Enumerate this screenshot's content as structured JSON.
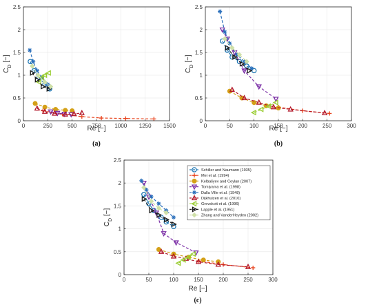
{
  "chart_data": [
    {
      "type": "line",
      "panel_label": "(a)",
      "xlabel": "Re [−]",
      "ylabel": "C_D [−]",
      "xlim": [
        0,
        1500
      ],
      "ylim": [
        0,
        2.5
      ],
      "xticks": [
        0,
        250,
        500,
        750,
        1000,
        1250,
        1500
      ],
      "yticks": [
        0,
        0.5,
        1,
        1.5,
        2,
        2.5
      ],
      "grid": true,
      "series": [
        {
          "name": "Schiller and Naumann (1935)",
          "color": "#1f77b4",
          "marker": "circle",
          "x": [
            70,
            110,
            160,
            220,
            270
          ],
          "y": [
            1.3,
            1.1,
            0.95,
            0.8,
            0.7
          ]
        },
        {
          "name": "Mei et al. (1994)",
          "color": "#e8431c",
          "marker": "plus",
          "x": [
            200,
            400,
            600,
            800,
            1050,
            1340
          ],
          "y": [
            0.22,
            0.15,
            0.09,
            0.06,
            0.05,
            0.04
          ]
        },
        {
          "name": "Kelbaliyev and Ceylan (2007)",
          "color": "#d4a017",
          "marker": "circle-filled",
          "x": [
            120,
            220,
            330,
            430,
            500
          ],
          "y": [
            0.38,
            0.3,
            0.25,
            0.23,
            0.22
          ]
        },
        {
          "name": "Tomiyama et al. (1998)",
          "color": "#7b2fa6",
          "marker": "triangle-down",
          "x": [
            280,
            350,
            420,
            490
          ],
          "y": [
            0.2,
            0.17,
            0.15,
            0.14
          ]
        },
        {
          "name": "Dalla Ville et al. (1948)",
          "color": "#2a6fbb",
          "marker": "star",
          "x": [
            65,
            100,
            140,
            190,
            250
          ],
          "y": [
            1.55,
            1.3,
            1.1,
            0.95,
            0.8
          ]
        },
        {
          "name": "Dijkhuizen et al. (2010)",
          "color": "#b2182b",
          "marker": "triangle-up",
          "x": [
            140,
            220,
            320,
            430,
            520,
            600
          ],
          "y": [
            0.27,
            0.2,
            0.16,
            0.14,
            0.15,
            0.17
          ]
        },
        {
          "name": "Grevskott et al. (1996)",
          "color": "#9acd32",
          "marker": "triangle-left",
          "x": [
            160,
            190,
            220,
            260
          ],
          "y": [
            0.85,
            0.95,
            1.0,
            1.05
          ]
        },
        {
          "name": "Lapple et al. (1951)",
          "color": "#1a1a1a",
          "marker": "triangle-right",
          "x": [
            90,
            140,
            200,
            260
          ],
          "y": [
            1.05,
            0.9,
            0.75,
            0.7
          ]
        },
        {
          "name": "Zhang and VanderHeyden (2002)",
          "color": "#cfe0a8",
          "marker": "diamond",
          "x": [
            90,
            150,
            220,
            280
          ],
          "y": [
            1.2,
            1.0,
            0.85,
            0.75
          ]
        }
      ]
    },
    {
      "type": "line",
      "panel_label": "(b)",
      "xlabel": "Re [−]",
      "ylabel": "C_D [−]",
      "xlim": [
        0,
        300
      ],
      "ylim": [
        0,
        2.5
      ],
      "xticks": [
        0,
        50,
        100,
        150,
        200,
        250,
        300
      ],
      "yticks": [
        0,
        0.5,
        1,
        1.5,
        2,
        2.5
      ],
      "grid": true,
      "series": [
        {
          "name": "Schiller and Naumann (1935)",
          "color": "#1f77b4",
          "marker": "circle",
          "x": [
            35,
            45,
            55,
            70,
            85,
            100
          ],
          "y": [
            1.75,
            1.55,
            1.4,
            1.3,
            1.2,
            1.1
          ]
        },
        {
          "name": "Mei et al. (1994)",
          "color": "#e8431c",
          "marker": "plus",
          "x": [
            150,
            200,
            255
          ],
          "y": [
            0.3,
            0.22,
            0.16
          ]
        },
        {
          "name": "Kelbaliyev and Ceylan (2007)",
          "color": "#d4a017",
          "marker": "circle-filled",
          "x": [
            50,
            75,
            100,
            125,
            150
          ],
          "y": [
            0.65,
            0.5,
            0.4,
            0.33,
            0.28
          ]
        },
        {
          "name": "Tomiyama et al. (1998)",
          "color": "#7b2fa6",
          "marker": "triangle-down",
          "x": [
            35,
            45,
            60,
            80,
            110,
            145
          ],
          "y": [
            2.0,
            1.8,
            1.5,
            1.1,
            0.75,
            0.48
          ]
        },
        {
          "name": "Dalla Ville et al. (1948)",
          "color": "#2a6fbb",
          "marker": "star",
          "x": [
            30,
            40,
            50,
            65,
            80,
            95
          ],
          "y": [
            2.4,
            1.95,
            1.7,
            1.45,
            1.3,
            1.15
          ]
        },
        {
          "name": "Dijkhuizen et al. (2010)",
          "color": "#b2182b",
          "marker": "triangle-up",
          "x": [
            55,
            80,
            110,
            140,
            175,
            245
          ],
          "y": [
            0.68,
            0.5,
            0.4,
            0.3,
            0.25,
            0.17
          ]
        },
        {
          "name": "Grevskott et al. (1996)",
          "color": "#9acd32",
          "marker": "triangle-left",
          "x": [
            100,
            115,
            130,
            145
          ],
          "y": [
            0.18,
            0.25,
            0.32,
            0.4
          ]
        },
        {
          "name": "Lapple et al. (1951)",
          "color": "#1a1a1a",
          "marker": "triangle-right",
          "x": [
            45,
            60,
            75,
            90
          ],
          "y": [
            1.6,
            1.4,
            1.25,
            1.1
          ]
        },
        {
          "name": "Zhang and VanderHeyden (2002)",
          "color": "#cfe0a8",
          "marker": "diamond",
          "x": [
            40,
            55,
            70,
            85
          ],
          "y": [
            1.8,
            1.6,
            1.45,
            1.3
          ]
        }
      ]
    },
    {
      "type": "line",
      "panel_label": "(c)",
      "xlabel": "Re [−]",
      "ylabel": "C_D [−]",
      "xlim": [
        0,
        300
      ],
      "ylim": [
        0,
        2.5
      ],
      "xticks": [
        0,
        50,
        100,
        150,
        200,
        250,
        300
      ],
      "yticks": [
        0,
        0.5,
        1,
        1.5,
        2,
        2.5
      ],
      "grid": true,
      "legend_position": "top-right",
      "series": [
        {
          "name": "Schiller and Naumann (1935)",
          "color": "#1f77b4",
          "marker": "circle",
          "x": [
            40,
            50,
            60,
            75,
            85,
            100
          ],
          "y": [
            1.75,
            1.55,
            1.4,
            1.25,
            1.15,
            1.05
          ]
        },
        {
          "name": "Mei et al. (1994)",
          "color": "#e8431c",
          "marker": "plus",
          "x": [
            150,
            200,
            260
          ],
          "y": [
            0.3,
            0.22,
            0.15
          ]
        },
        {
          "name": "Kelbaliyev and Ceylan (2007)",
          "color": "#d4a017",
          "marker": "circle-filled",
          "x": [
            70,
            100,
            130,
            160,
            190
          ],
          "y": [
            0.55,
            0.45,
            0.38,
            0.32,
            0.28
          ]
        },
        {
          "name": "Tomiyama et al. (1998)",
          "color": "#7b2fa6",
          "marker": "triangle-down",
          "x": [
            40,
            50,
            65,
            80,
            105,
            145
          ],
          "y": [
            2.0,
            1.7,
            1.35,
            0.9,
            0.7,
            0.48
          ]
        },
        {
          "name": "Dalla Ville et al. (1948)",
          "color": "#2a6fbb",
          "marker": "star",
          "x": [
            35,
            45,
            55,
            70,
            85,
            100
          ],
          "y": [
            2.05,
            1.85,
            1.7,
            1.55,
            1.4,
            1.25
          ]
        },
        {
          "name": "Dijkhuizen et al. (2010)",
          "color": "#b2182b",
          "marker": "triangle-up",
          "x": [
            75,
            100,
            125,
            150,
            190,
            250
          ],
          "y": [
            0.5,
            0.4,
            0.35,
            0.28,
            0.22,
            0.17
          ]
        },
        {
          "name": "Grevskott et al. (1996)",
          "color": "#9acd32",
          "marker": "triangle-left",
          "x": [
            110,
            120,
            130,
            140
          ],
          "y": [
            0.25,
            0.32,
            0.38,
            0.45
          ]
        },
        {
          "name": "Lapple et al. (1951)",
          "color": "#1a1a1a",
          "marker": "triangle-right",
          "x": [
            40,
            55,
            70,
            85,
            100
          ],
          "y": [
            1.65,
            1.4,
            1.3,
            1.2,
            1.1
          ]
        },
        {
          "name": "Zhang and VanderHeyden (2002)",
          "color": "#cfe0a8",
          "marker": "diamond",
          "x": [
            40,
            55,
            70,
            85
          ],
          "y": [
            1.9,
            1.6,
            1.45,
            1.35
          ]
        }
      ]
    }
  ]
}
